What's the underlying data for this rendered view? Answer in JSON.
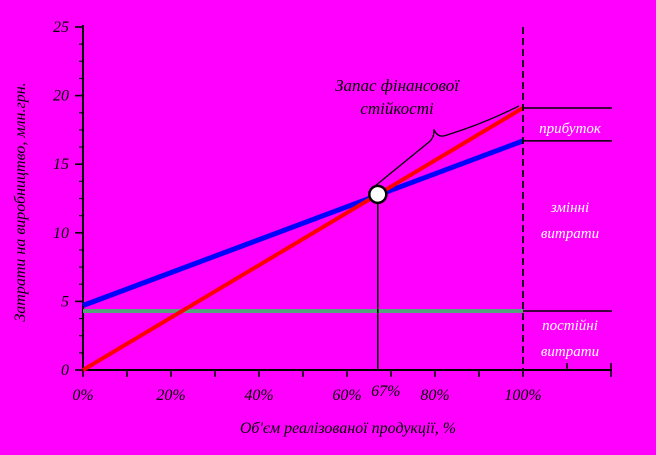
{
  "window": {
    "background": "#ff00ff"
  },
  "chart_data": {
    "type": "line",
    "title": "",
    "xlabel": "Об'єм реалізованої продукції, %",
    "ylabel": "Затрати на виробництво, млн.грн.",
    "xlim_percent": [
      0,
      120
    ],
    "ylim": [
      0,
      25
    ],
    "grid": false,
    "legend": "none",
    "x_tick_values": [
      0,
      20,
      40,
      60,
      80,
      100
    ],
    "x_tick_labels": [
      "0%",
      "20%",
      "40%",
      "60%",
      "80%",
      "100%"
    ],
    "x_minor_step_percent": 10,
    "y_tick_values": [
      0,
      5,
      10,
      15,
      20,
      25
    ],
    "y_tick_labels": [
      "0",
      "5",
      "10",
      "15",
      "20",
      "25"
    ],
    "y_minor_step": 1.25,
    "series": [
      {
        "id": "red-line",
        "color": "#ff0000",
        "points_percent_value": [
          [
            0,
            0
          ],
          [
            100,
            19.1
          ]
        ]
      },
      {
        "id": "blue-line",
        "color": "#0000ff",
        "points_percent_value": [
          [
            0,
            4.7
          ],
          [
            100,
            16.7
          ]
        ]
      },
      {
        "id": "gray-line",
        "color": "#55a07d",
        "points_percent_value": [
          [
            0,
            4.3
          ],
          [
            100,
            4.3
          ]
        ]
      }
    ],
    "break_even_point": {
      "x_percent": 67,
      "value": 12.8,
      "x_tick_label": "67%",
      "marker": "white-circle"
    },
    "dashed_guide_x_percent": 100,
    "annotation_brace": {
      "line1": "Запас фінансової",
      "line2": "стійкості"
    },
    "zone_labels": [
      {
        "text": "прибуток",
        "color": "#ffffff"
      },
      {
        "text": "змінні витрати",
        "color": "#ffffff"
      },
      {
        "text": "постійні витрати",
        "color": "#ffffff"
      }
    ]
  }
}
